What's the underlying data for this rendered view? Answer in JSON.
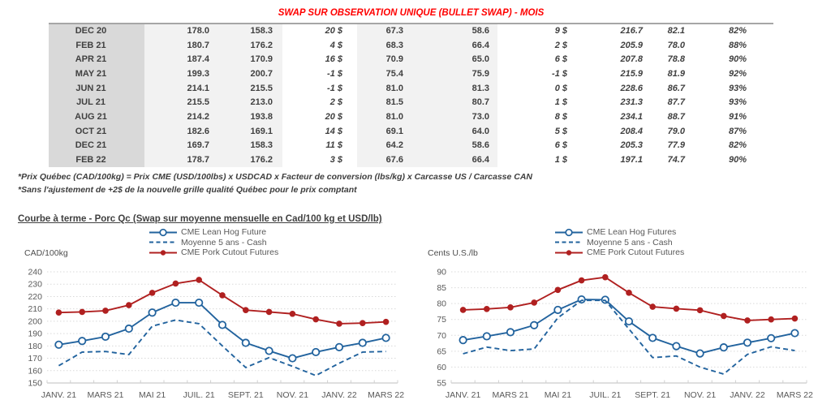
{
  "title": "SWAP SUR OBSERVATION UNIQUE (BULLET SWAP) - MOIS",
  "table": {
    "rows": [
      {
        "month": "DEC 20",
        "cad_future": "178.0",
        "cad_cash": "158.3",
        "cad_swap": "20 $",
        "cad_sign": "pos",
        "usd_future": "67.3",
        "usd_cash": "58.6",
        "usd_swap": "9 $",
        "usd_sign": "pos",
        "px_cad": "216.7",
        "px_usd": "82.1",
        "ratio": "82%"
      },
      {
        "month": "FEB 21",
        "cad_future": "180.7",
        "cad_cash": "176.2",
        "cad_swap": "4 $",
        "cad_sign": "pos",
        "usd_future": "68.3",
        "usd_cash": "66.4",
        "usd_swap": "2 $",
        "usd_sign": "pos",
        "px_cad": "205.9",
        "px_usd": "78.0",
        "ratio": "88%"
      },
      {
        "month": "APR 21",
        "cad_future": "187.4",
        "cad_cash": "170.9",
        "cad_swap": "16 $",
        "cad_sign": "pos",
        "usd_future": "70.9",
        "usd_cash": "65.0",
        "usd_swap": "6 $",
        "usd_sign": "pos",
        "px_cad": "207.8",
        "px_usd": "78.8",
        "ratio": "90%"
      },
      {
        "month": "MAY 21",
        "cad_future": "199.3",
        "cad_cash": "200.7",
        "cad_swap": "-1 $",
        "cad_sign": "neg",
        "usd_future": "75.4",
        "usd_cash": "75.9",
        "usd_swap": "-1 $",
        "usd_sign": "neg",
        "px_cad": "215.9",
        "px_usd": "81.9",
        "ratio": "92%"
      },
      {
        "month": "JUN 21",
        "cad_future": "214.1",
        "cad_cash": "215.5",
        "cad_swap": "-1 $",
        "cad_sign": "neg",
        "usd_future": "81.0",
        "usd_cash": "81.3",
        "usd_swap": "0 $",
        "usd_sign": "neg",
        "px_cad": "228.6",
        "px_usd": "86.7",
        "ratio": "93%"
      },
      {
        "month": "JUL 21",
        "cad_future": "215.5",
        "cad_cash": "213.0",
        "cad_swap": "2 $",
        "cad_sign": "pos",
        "usd_future": "81.5",
        "usd_cash": "80.7",
        "usd_swap": "1 $",
        "usd_sign": "pos",
        "px_cad": "231.3",
        "px_usd": "87.7",
        "ratio": "93%"
      },
      {
        "month": "AUG 21",
        "cad_future": "214.2",
        "cad_cash": "193.8",
        "cad_swap": "20 $",
        "cad_sign": "pos",
        "usd_future": "81.0",
        "usd_cash": "73.0",
        "usd_swap": "8 $",
        "usd_sign": "pos",
        "px_cad": "234.1",
        "px_usd": "88.7",
        "ratio": "91%"
      },
      {
        "month": "OCT 21",
        "cad_future": "182.6",
        "cad_cash": "169.1",
        "cad_swap": "14 $",
        "cad_sign": "pos",
        "usd_future": "69.1",
        "usd_cash": "64.0",
        "usd_swap": "5 $",
        "usd_sign": "pos",
        "px_cad": "208.4",
        "px_usd": "79.0",
        "ratio": "87%"
      },
      {
        "month": "DEC 21",
        "cad_future": "169.7",
        "cad_cash": "158.3",
        "cad_swap": "11 $",
        "cad_sign": "pos",
        "usd_future": "64.2",
        "usd_cash": "58.6",
        "usd_swap": "6 $",
        "usd_sign": "pos",
        "px_cad": "205.3",
        "px_usd": "77.9",
        "ratio": "82%"
      },
      {
        "month": "FEB 22",
        "cad_future": "178.7",
        "cad_cash": "176.2",
        "cad_swap": "3 $",
        "cad_sign": "pos",
        "usd_future": "67.6",
        "usd_cash": "66.4",
        "usd_swap": "1 $",
        "usd_sign": "pos",
        "px_cad": "197.1",
        "px_usd": "74.7",
        "ratio": "90%"
      }
    ]
  },
  "footnotes": [
    "*Prix Québec (CAD/100kg) = Prix CME (USD/100lbs) x USDCAD x Facteur de conversion (lbs/kg) x Carcasse US / Carcasse CAN",
    "*Sans l'ajustement de +2$ de la nouvelle grille qualité Québec pour le prix comptant"
  ],
  "section_title": "Courbe à terme - Porc Qc (Swap sur moyenne mensuelle en Cad/100 kg et USD/lb)",
  "colors": {
    "title_red": "#ff0000",
    "positive_green": "#00b050",
    "negative_red": "#ff0000",
    "table_blue": "#1f5fa9",
    "chart_blue": "#22639e",
    "chart_red": "#b02020",
    "month_col_bg": "#d9d9d9",
    "zone_bg": "#f2f2f2"
  },
  "chart_data": [
    {
      "type": "line",
      "unit_label": "CAD/100kg",
      "ylim": [
        150,
        240
      ],
      "ytick_step": 10,
      "n_points": 15,
      "x_tick_labels": [
        "JANV. 21",
        "MARS 21",
        "MAI 21",
        "JUIL. 21",
        "SEPT. 21",
        "NOV. 21",
        "JANV. 22",
        "MARS 22"
      ],
      "x_tick_indices": [
        0,
        2,
        4,
        6,
        8,
        10,
        12,
        14
      ],
      "grid": true,
      "legend_position": "top",
      "series": [
        {
          "name": "CME Lean Hog Future",
          "style": "solid",
          "marker": "open-circle",
          "color": "#22639e",
          "values": [
            181,
            184,
            187.5,
            194,
            207,
            215,
            215,
            197,
            182.5,
            176,
            170,
            175,
            179,
            182.5,
            186.5
          ]
        },
        {
          "name": "Moyenne 5 ans - Cash",
          "style": "dashed",
          "marker": "none",
          "color": "#22639e",
          "values": [
            164,
            175,
            175.5,
            173,
            196,
            201,
            198,
            180,
            162.5,
            170.5,
            163.5,
            156,
            166,
            175,
            175.5
          ]
        },
        {
          "name": "CME Pork Cutout Futures",
          "style": "solid",
          "marker": "filled-circle",
          "color": "#b02020",
          "values": [
            207,
            207.5,
            208.5,
            213,
            223,
            230.5,
            233.5,
            221,
            209,
            207.5,
            206,
            201.5,
            198,
            198.5,
            199.5
          ]
        }
      ]
    },
    {
      "type": "line",
      "unit_label": "Cents U.S./lb",
      "ylim": [
        55,
        90
      ],
      "ytick_step": 5,
      "n_points": 15,
      "x_tick_labels": [
        "JANV. 21",
        "MARS 21",
        "MAI 21",
        "JUIL. 21",
        "SEPT. 21",
        "NOV. 21",
        "JANV. 22",
        "MARS 22"
      ],
      "x_tick_indices": [
        0,
        2,
        4,
        6,
        8,
        10,
        12,
        14
      ],
      "grid": true,
      "legend_position": "top",
      "series": [
        {
          "name": "CME Lean Hog Futures",
          "style": "solid",
          "marker": "open-circle",
          "color": "#22639e",
          "values": [
            68.5,
            69.7,
            71,
            73.2,
            78,
            81.3,
            81.2,
            74.4,
            69.2,
            66.6,
            64.3,
            66.2,
            67.7,
            69.1,
            70.7
          ]
        },
        {
          "name": "Moyenne 5 ans - Cash",
          "style": "dashed",
          "marker": "none",
          "color": "#22639e",
          "values": [
            64.2,
            66.3,
            65.2,
            65.7,
            75.5,
            81,
            81,
            72,
            63,
            63.5,
            60,
            57.8,
            64,
            66.4,
            65.2
          ]
        },
        {
          "name": "CME Pork Cutout Futures",
          "style": "solid",
          "marker": "filled-circle",
          "color": "#b02020",
          "values": [
            78,
            78.3,
            78.8,
            80.3,
            84.3,
            87.3,
            88.3,
            83.4,
            79,
            78.4,
            77.9,
            76.1,
            74.7,
            75,
            75.3
          ]
        }
      ]
    }
  ]
}
